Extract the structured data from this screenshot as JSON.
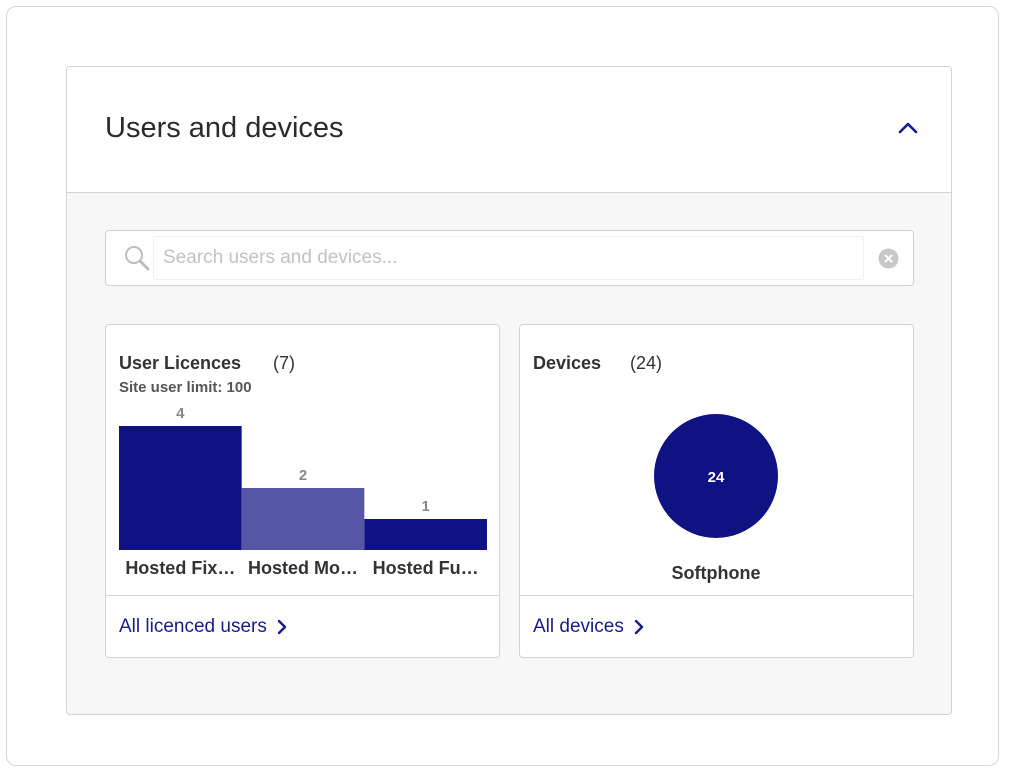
{
  "panel": {
    "title": "Users and devices"
  },
  "search": {
    "placeholder": "Search users and devices..."
  },
  "users_card": {
    "title": "User Licences",
    "count": "(7)",
    "subtitle": "Site user limit: 100",
    "link": "All licenced users"
  },
  "devices_card": {
    "title": "Devices",
    "count": "(24)",
    "link": "All devices"
  },
  "colors": {
    "navy": "#0f1283",
    "bar_light": "#5557a6",
    "link": "#1b1a8a"
  },
  "chart_data": [
    {
      "type": "bar",
      "categories": [
        "Hosted Fix…",
        "Hosted Mo…",
        "Hosted Fu…"
      ],
      "values": [
        4,
        2,
        1
      ],
      "colors": [
        "#0f1283",
        "#5557a6",
        "#0f1283"
      ],
      "ylim": [
        0,
        4
      ],
      "data_labels": true
    },
    {
      "type": "pie",
      "categories": [
        "Softphone"
      ],
      "values": [
        24
      ],
      "colors": [
        "#0f1283"
      ],
      "data_labels": true
    }
  ]
}
